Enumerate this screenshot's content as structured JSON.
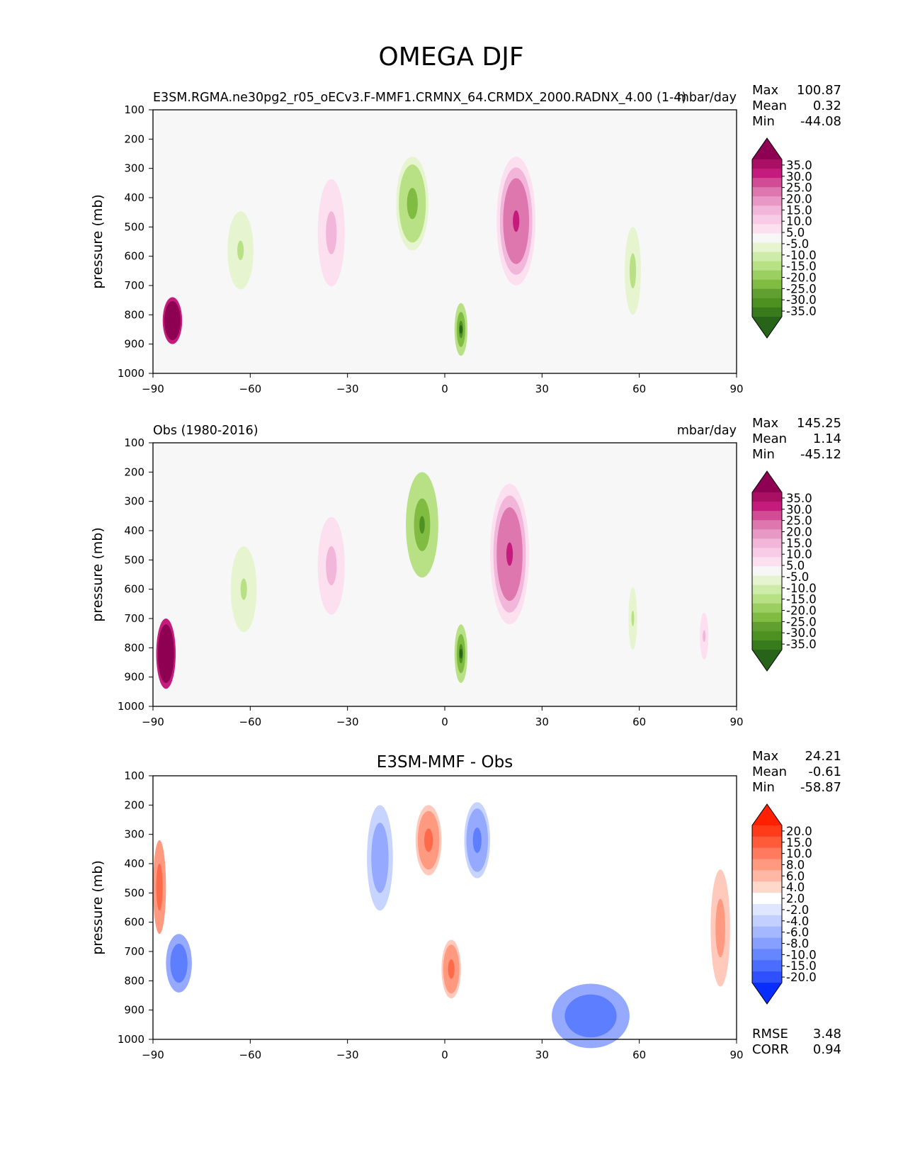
{
  "figure_title": "OMEGA DJF",
  "colors": {
    "omega_scale": [
      "#8e0152",
      "#c51b7d",
      "#de77ae",
      "#f1b6da",
      "#fde0ef",
      "#f7f7f7",
      "#e6f5d0",
      "#b8e186",
      "#7fbc41",
      "#4d9221",
      "#276419"
    ],
    "diff_scale": [
      "#ff3000",
      "#ff6a4a",
      "#ff9a80",
      "#ffc9bb",
      "#ffffff",
      "#c7d4ff",
      "#95aaff",
      "#5d7fff",
      "#1c3cff"
    ]
  },
  "chart_data": [
    {
      "type": "heatmap",
      "title": "",
      "left_title": "E3SM.RGMA.ne30pg2_r05_oECv3.F-MMF1.CRMNX_64.CRMDX_2000.RADNX_4.00 (1-4)",
      "right_title": "mbar/day",
      "xlabel": "",
      "ylabel": "pressure (mb)",
      "xlim": [
        -90,
        90
      ],
      "ylim": [
        1000,
        100
      ],
      "xticks": [
        "−90",
        "−60",
        "−30",
        "0",
        "30",
        "60",
        "90"
      ],
      "yticks": [
        "100",
        "200",
        "300",
        "400",
        "500",
        "600",
        "700",
        "800",
        "900",
        "1000"
      ],
      "stats": {
        "max_label": "Max",
        "max": "100.87",
        "mean_label": "Mean",
        "mean": "0.32",
        "min_label": "Min",
        "min": "-44.08"
      },
      "colorbar_ticks": [
        "35.0",
        "30.0",
        "25.0",
        "20.0",
        "15.0",
        "10.0",
        "5.0",
        "-5.0",
        "-10.0",
        "-15.0",
        "-20.0",
        "-25.0",
        "-30.0",
        "-35.0"
      ],
      "features": [
        {
          "lat": -84,
          "p": 820,
          "value": 80,
          "lat_width": 3,
          "p_width": 80
        },
        {
          "lat": -63,
          "p": 580,
          "value": -10,
          "lat_width": 6,
          "p_width": 200
        },
        {
          "lat": -35,
          "p": 520,
          "value": 12,
          "lat_width": 5,
          "p_width": 220
        },
        {
          "lat": -10,
          "p": 420,
          "value": -25,
          "lat_width": 5,
          "p_width": 160
        },
        {
          "lat": 5,
          "p": 850,
          "value": -40,
          "lat_width": 2,
          "p_width": 90
        },
        {
          "lat": 22,
          "p": 480,
          "value": 25,
          "lat_width": 6,
          "p_width": 220
        },
        {
          "lat": 58,
          "p": 650,
          "value": -12,
          "lat_width": 3,
          "p_width": 180
        }
      ]
    },
    {
      "type": "heatmap",
      "title": "",
      "left_title": "Obs (1980-2016)",
      "right_title": "mbar/day",
      "xlabel": "",
      "ylabel": "pressure (mb)",
      "xlim": [
        -90,
        90
      ],
      "ylim": [
        1000,
        100
      ],
      "xticks": [
        "−90",
        "−60",
        "−30",
        "0",
        "30",
        "60",
        "90"
      ],
      "yticks": [
        "100",
        "200",
        "300",
        "400",
        "500",
        "600",
        "700",
        "800",
        "900",
        "1000"
      ],
      "stats": {
        "max_label": "Max",
        "max": "145.25",
        "mean_label": "Mean",
        "mean": "1.14",
        "min_label": "Min",
        "min": "-45.12"
      },
      "colorbar_ticks": [
        "35.0",
        "30.0",
        "25.0",
        "20.0",
        "15.0",
        "10.0",
        "5.0",
        "-5.0",
        "-10.0",
        "-15.0",
        "-20.0",
        "-25.0",
        "-30.0",
        "-35.0"
      ],
      "features": [
        {
          "lat": -86,
          "p": 820,
          "value": 90,
          "lat_width": 3,
          "p_width": 120
        },
        {
          "lat": -62,
          "p": 600,
          "value": -10,
          "lat_width": 6,
          "p_width": 220
        },
        {
          "lat": -35,
          "p": 520,
          "value": 12,
          "lat_width": 5,
          "p_width": 200
        },
        {
          "lat": -7,
          "p": 380,
          "value": -30,
          "lat_width": 5,
          "p_width": 180
        },
        {
          "lat": 5,
          "p": 820,
          "value": -40,
          "lat_width": 2,
          "p_width": 100
        },
        {
          "lat": 20,
          "p": 480,
          "value": 25,
          "lat_width": 6,
          "p_width": 240
        },
        {
          "lat": 58,
          "p": 700,
          "value": -10,
          "lat_width": 2,
          "p_width": 160
        },
        {
          "lat": 80,
          "p": 760,
          "value": 10,
          "lat_width": 2,
          "p_width": 120
        }
      ]
    },
    {
      "type": "heatmap",
      "title": "E3SM-MMF - Obs",
      "left_title": "",
      "right_title": "",
      "xlabel": "",
      "ylabel": "pressure (mb)",
      "xlim": [
        -90,
        90
      ],
      "ylim": [
        1000,
        100
      ],
      "xticks": [
        "−90",
        "−60",
        "−30",
        "0",
        "30",
        "60",
        "90"
      ],
      "yticks": [
        "100",
        "200",
        "300",
        "400",
        "500",
        "600",
        "700",
        "800",
        "900",
        "1000"
      ],
      "stats": {
        "max_label": "Max",
        "max": "24.21",
        "mean_label": "Mean",
        "mean": "-0.61",
        "min_label": "Min",
        "min": "-58.87"
      },
      "colorbar_ticks": [
        "20.0",
        "15.0",
        "10.0",
        "8.0",
        "6.0",
        "4.0",
        "2.0",
        "-2.0",
        "-4.0",
        "-6.0",
        "-8.0",
        "-10.0",
        "-15.0",
        "-20.0"
      ],
      "metrics": {
        "rmse_label": "RMSE",
        "rmse": "3.48",
        "corr_label": "CORR",
        "corr": "0.94"
      },
      "features": [
        {
          "lat": -88,
          "p": 480,
          "value": 12,
          "lat_width": 2,
          "p_width": 160
        },
        {
          "lat": -82,
          "p": 740,
          "value": -14,
          "lat_width": 4,
          "p_width": 100
        },
        {
          "lat": -20,
          "p": 380,
          "value": -7,
          "lat_width": 4,
          "p_width": 180
        },
        {
          "lat": -5,
          "p": 320,
          "value": 10,
          "lat_width": 4,
          "p_width": 120
        },
        {
          "lat": 2,
          "p": 760,
          "value": 10,
          "lat_width": 3,
          "p_width": 100
        },
        {
          "lat": 10,
          "p": 320,
          "value": -10,
          "lat_width": 4,
          "p_width": 130
        },
        {
          "lat": 45,
          "p": 920,
          "value": -14,
          "lat_width": 12,
          "p_width": 110
        },
        {
          "lat": 85,
          "p": 620,
          "value": 6,
          "lat_width": 3,
          "p_width": 200
        }
      ]
    }
  ]
}
